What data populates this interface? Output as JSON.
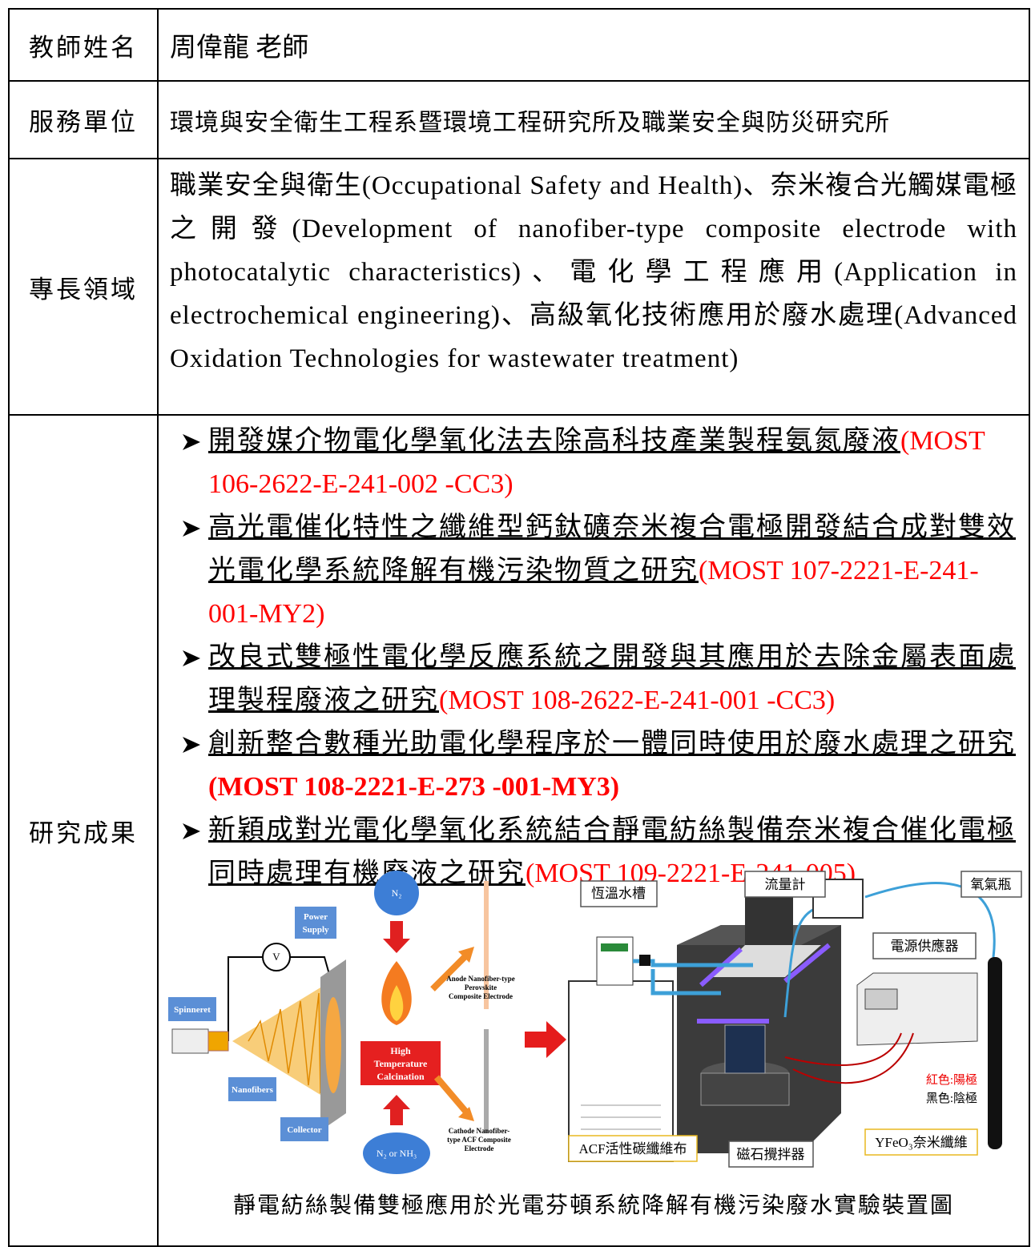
{
  "table": {
    "rows": [
      {
        "label": "教師姓名",
        "value": "周偉龍 老師"
      },
      {
        "label": "服務單位",
        "value": "環境與安全衛生工程系暨環境工程研究所及職業安全與防災研究所"
      },
      {
        "label": "專長領域",
        "value": "職業安全與衛生(Occupational Safety and Health)、奈米複合光觸媒電極之開發(Development of nanofiber-type composite electrode with photocatalytic characteristics)、電化學工程應用(Application in electrochemical engineering)、高級氧化技術應用於廢水處理(Advanced Oxidation Technologies for wastewater treatment)"
      },
      {
        "label": "研究成果",
        "items": [
          {
            "title": "開發媒介物電化學氧化法去除高科技產業製程氨氮廢液",
            "code": "(MOST 106-2622-E-241-002 -CC3)"
          },
          {
            "title": "高光電催化特性之纖維型鈣鈦礦奈米複合電極開發結合成對雙效光電化學系統降解有機污染物質之研究",
            "code": "(MOST 107-2221-E-241-001-MY2)"
          },
          {
            "title": "改良式雙極性電化學反應系統之開發與其應用於去除金屬表面處理製程廢液之研究",
            "code": "(MOST 108-2622-E-241-001 -CC3)"
          },
          {
            "title": "創新整合數種光助電化學程序於一體同時使用於廢水處理之研究",
            "code": "(MOST 108-2221-E-273 -001-MY3)",
            "bold": true
          },
          {
            "title": "新穎成對光電化學氧化系統結合靜電紡絲製備奈米複合催化電極同時處理有機廢液之研究",
            "code": "(MOST 109-2221-E-241-005)"
          }
        ]
      }
    ]
  },
  "figure": {
    "power_supply": [
      "Power",
      "Supply"
    ],
    "voltmeter": "V",
    "spinneret": "Spinneret",
    "nanofibers": "Nanofibers",
    "collector": "Collector",
    "n2": "N₂",
    "calcination": [
      "High",
      "Temperature",
      "Calcination"
    ],
    "n2_nh3": "N₂ or NH₃",
    "anode": [
      "Anode Nanofiber-type",
      "Perovskite",
      "Composite Electrode"
    ],
    "cathode": [
      "Cathode Nanofiber-",
      "type ACF Composite",
      "Electrode"
    ],
    "thermostat": "恆溫水槽",
    "flowmeter": "流量計",
    "oxygen": "氧氣瓶",
    "power": "電源供應器",
    "red_note": "紅色:陽極",
    "black_note": "黑色:陰極",
    "acf": "ACF活性碳纖維布",
    "stirrer": "磁石攪拌器",
    "yfeo3": "YFeO₃奈米纖維",
    "caption": "靜電紡絲製備雙極應用於光電芬頓系統降解有機污染廢水實驗裝置圖"
  }
}
